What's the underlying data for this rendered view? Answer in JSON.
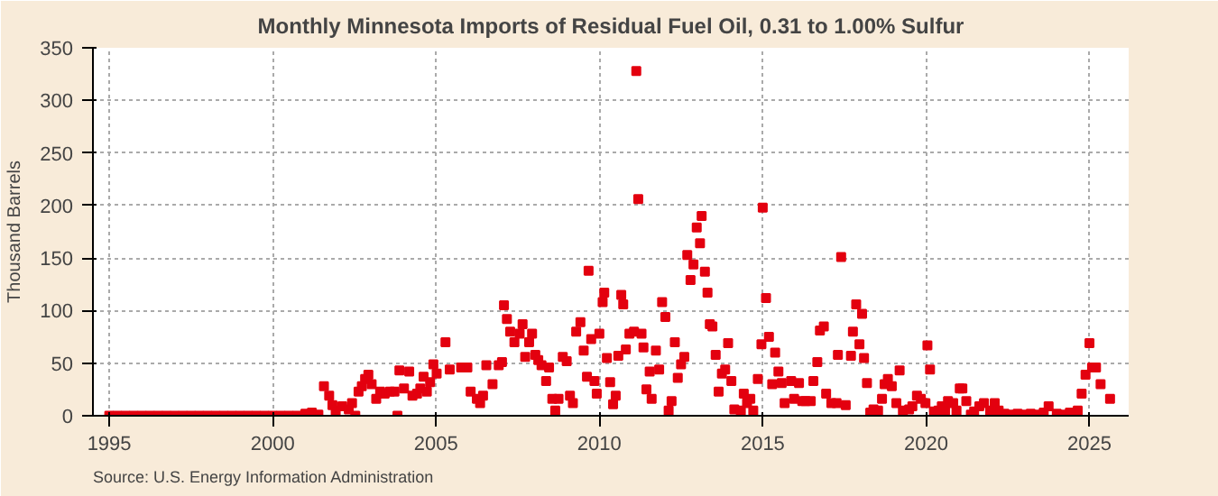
{
  "chart_data": {
    "type": "scatter",
    "title": "Monthly Minnesota Imports of Residual Fuel Oil, 0.31 to 1.00% Sulfur",
    "ylabel": "Thousand Barrels",
    "annotations": [
      "Source: U.S. Energy Information Administration"
    ],
    "marker": "square",
    "grid": true,
    "xlim": [
      1994.5,
      2026.2
    ],
    "xticks": [
      1995,
      2000,
      2005,
      2010,
      2015,
      2020,
      2025
    ],
    "ylim": [
      0,
      350
    ],
    "yticks": [
      0,
      50,
      100,
      150,
      200,
      250,
      300,
      350
    ],
    "x": [
      1995.0,
      1995.25,
      1995.5,
      1995.75,
      1996.0,
      1996.25,
      1996.5,
      1996.75,
      1997.0,
      1997.25,
      1997.5,
      1997.75,
      1998.0,
      1998.25,
      1998.5,
      1998.75,
      1999.0,
      1999.25,
      1999.5,
      1999.75,
      2000.0,
      2000.25,
      2000.5,
      2000.75,
      2001.0,
      2001.2,
      2001.4,
      2001.57,
      2001.73,
      2001.83,
      2001.93,
      2002.13,
      2002.33,
      2002.43,
      2002.53,
      2002.63,
      2002.73,
      2002.83,
      2002.93,
      2003.03,
      2003.17,
      2003.29,
      2003.43,
      2003.59,
      2003.73,
      2003.82,
      2003.88,
      2004.02,
      2004.18,
      2004.28,
      2004.42,
      2004.52,
      2004.62,
      2004.72,
      2004.82,
      2004.92,
      2005.02,
      2005.29,
      2005.42,
      2005.77,
      2005.96,
      2006.06,
      2006.25,
      2006.35,
      2006.44,
      2006.54,
      2006.73,
      2006.92,
      2007.02,
      2007.08,
      2007.17,
      2007.27,
      2007.4,
      2007.56,
      2007.65,
      2007.73,
      2007.85,
      2007.94,
      2008.04,
      2008.13,
      2008.23,
      2008.37,
      2008.46,
      2008.56,
      2008.65,
      2008.75,
      2008.88,
      2009.0,
      2009.1,
      2009.19,
      2009.29,
      2009.42,
      2009.52,
      2009.62,
      2009.67,
      2009.75,
      2009.85,
      2009.92,
      2010.0,
      2010.1,
      2010.15,
      2010.23,
      2010.33,
      2010.42,
      2010.5,
      2010.58,
      2010.67,
      2010.73,
      2010.81,
      2010.92,
      2011.06,
      2011.13,
      2011.19,
      2011.29,
      2011.35,
      2011.44,
      2011.54,
      2011.6,
      2011.73,
      2011.83,
      2011.92,
      2012.02,
      2012.12,
      2012.21,
      2012.31,
      2012.4,
      2012.5,
      2012.6,
      2012.69,
      2012.79,
      2012.88,
      2012.98,
      2013.08,
      2013.13,
      2013.23,
      2013.31,
      2013.38,
      2013.46,
      2013.56,
      2013.65,
      2013.75,
      2013.85,
      2013.94,
      2014.04,
      2014.13,
      2014.33,
      2014.42,
      2014.52,
      2014.62,
      2014.71,
      2014.85,
      2014.96,
      2015.0,
      2015.1,
      2015.19,
      2015.29,
      2015.38,
      2015.48,
      2015.58,
      2015.67,
      2015.87,
      2015.96,
      2016.11,
      2016.21,
      2016.31,
      2016.47,
      2016.55,
      2016.67,
      2016.75,
      2016.87,
      2016.94,
      2017.1,
      2017.26,
      2017.3,
      2017.4,
      2017.54,
      2017.7,
      2017.76,
      2017.86,
      2017.96,
      2018.04,
      2018.1,
      2018.19,
      2018.29,
      2018.39,
      2018.53,
      2018.65,
      2018.73,
      2018.83,
      2018.95,
      2019.09,
      2019.19,
      2019.29,
      2019.48,
      2019.58,
      2019.72,
      2019.84,
      2019.98,
      2020.04,
      2020.12,
      2020.24,
      2020.38,
      2020.48,
      2020.58,
      2020.67,
      2020.83,
      2020.93,
      2021.03,
      2021.11,
      2021.23,
      2021.37,
      2021.47,
      2021.63,
      2021.77,
      2021.96,
      2022.1,
      2022.22,
      2022.4,
      2022.6,
      2022.8,
      2023.0,
      2023.2,
      2023.4,
      2023.6,
      2023.75,
      2024.0,
      2024.2,
      2024.4,
      2024.64,
      2024.76,
      2024.88,
      2025.0,
      2025.08,
      2025.2,
      2025.34,
      2025.63
    ],
    "series": [
      {
        "color": "#e3000f",
        "values": [
          0,
          0,
          0,
          0,
          0,
          0,
          0,
          0,
          0,
          0,
          0,
          0,
          0,
          0,
          0,
          0,
          0,
          0,
          0,
          0,
          0,
          0,
          0,
          0,
          2,
          3,
          1,
          28,
          19,
          10,
          5,
          9,
          6,
          12,
          0,
          23,
          28,
          35,
          39,
          30,
          16,
          23,
          21,
          23,
          23,
          0,
          43,
          26,
          42,
          19,
          21,
          26,
          37,
          23,
          32,
          49,
          40,
          70,
          44,
          46,
          46,
          23,
          16,
          12,
          19,
          48,
          30,
          48,
          51,
          105,
          92,
          80,
          70,
          78,
          87,
          56,
          70,
          78,
          58,
          53,
          48,
          33,
          46,
          16,
          5,
          16,
          56,
          52,
          19,
          12,
          80,
          89,
          62,
          37,
          138,
          73,
          33,
          21,
          78,
          108,
          117,
          55,
          32,
          11,
          19,
          57,
          115,
          106,
          63,
          78,
          80,
          328,
          206,
          78,
          65,
          25,
          42,
          16,
          62,
          44,
          108,
          94,
          5,
          14,
          70,
          36,
          49,
          56,
          153,
          129,
          144,
          179,
          164,
          190,
          137,
          117,
          87,
          85,
          58,
          23,
          40,
          44,
          69,
          33,
          6,
          5,
          21,
          12,
          16,
          5,
          35,
          68,
          198,
          112,
          75,
          30,
          60,
          42,
          31,
          12,
          33,
          16,
          31,
          14,
          14,
          14,
          33,
          51,
          81,
          85,
          21,
          12,
          12,
          58,
          151,
          10,
          57,
          80,
          106,
          68,
          97,
          55,
          31,
          3,
          6,
          5,
          16,
          30,
          35,
          28,
          12,
          43,
          5,
          6,
          9,
          19,
          16,
          12,
          67,
          44,
          4,
          5,
          9,
          5,
          14,
          12,
          5,
          26,
          26,
          14,
          1,
          4,
          9,
          12,
          5,
          12,
          5,
          2,
          1,
          2,
          1,
          2,
          1,
          3,
          9,
          2,
          1,
          3,
          5,
          21,
          39,
          69,
          46,
          46,
          30,
          16
        ]
      }
    ]
  }
}
